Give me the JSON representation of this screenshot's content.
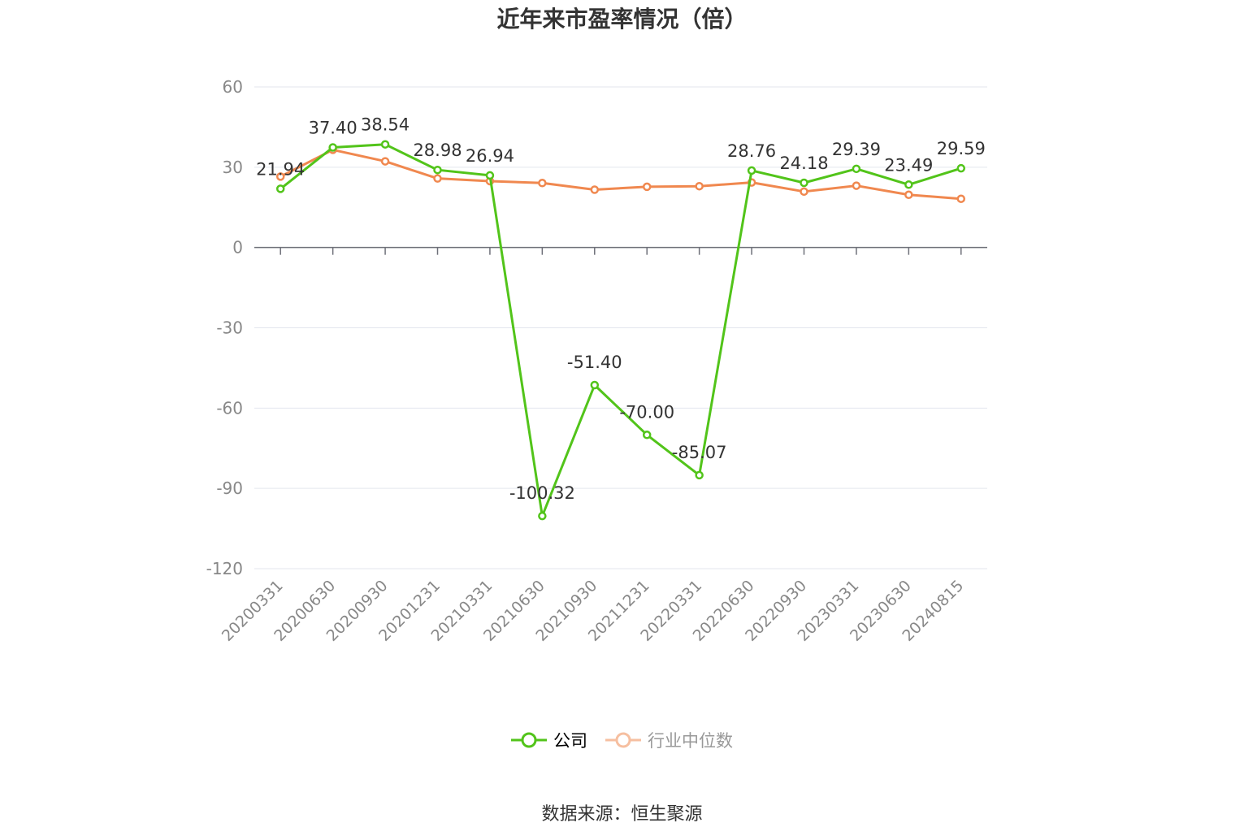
{
  "chart_data": {
    "type": "line",
    "title": "近年来市盈率情况（倍）",
    "categories": [
      "20200331",
      "20200630",
      "20200930",
      "20201231",
      "20210331",
      "20210630",
      "20210930",
      "20211231",
      "20220331",
      "20220630",
      "20220930",
      "20230331",
      "20230630",
      "20240815"
    ],
    "series": [
      {
        "name": "公司",
        "color": "#52c41a",
        "values": [
          21.94,
          37.4,
          38.54,
          28.98,
          26.94,
          -100.32,
          -51.4,
          -70.0,
          -85.07,
          28.76,
          24.18,
          29.39,
          23.49,
          29.59
        ],
        "labels": [
          "21.94",
          "37.40",
          "38.54",
          "28.98",
          "26.94",
          "-100.32",
          "-51.40",
          "-70.00",
          "-85.07",
          "28.76",
          "24.18",
          "29.39",
          "23.49",
          "29.59"
        ]
      },
      {
        "name": "行业中位数",
        "color": "#f0884f",
        "values": [
          26.5,
          36.5,
          32.2,
          25.8,
          24.8,
          24.1,
          21.6,
          22.7,
          22.9,
          24.3,
          20.9,
          23.1,
          19.7,
          18.2
        ]
      }
    ],
    "yticks": [
      60,
      30,
      0,
      -30,
      -60,
      -90,
      -120
    ],
    "ylim": [
      -120,
      60
    ],
    "grid": true,
    "legend_position": "bottom"
  },
  "legend": {
    "company": "公司",
    "industry": "行业中位数"
  },
  "source": "数据来源：恒生聚源"
}
